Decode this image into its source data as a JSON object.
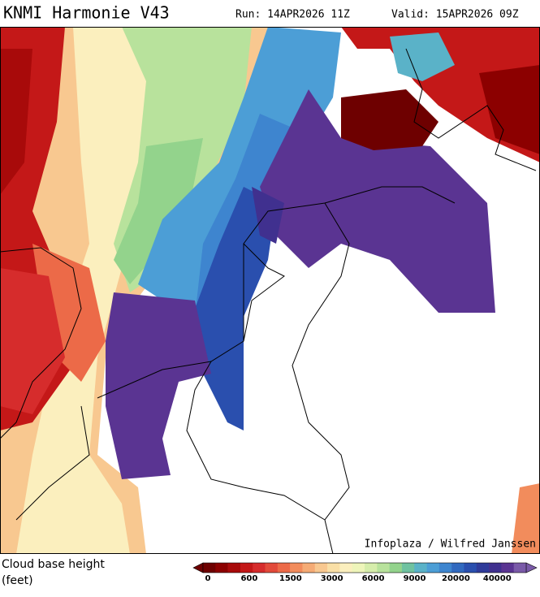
{
  "header": {
    "title": "KNMI Harmonie V43",
    "run": "Run: 14APR2026 11Z",
    "valid": "Valid: 15APR2026 09Z"
  },
  "map": {
    "credit": "Infoplaza / Wilfred Janssen"
  },
  "legend": {
    "label_line1": "Cloud base height",
    "label_line2": "(feet)",
    "colors": [
      "#6e0000",
      "#8c0000",
      "#a80a0a",
      "#c41818",
      "#d62c2c",
      "#e24a3a",
      "#ec6a48",
      "#f28c5c",
      "#f5ab75",
      "#f8c890",
      "#f9dfa6",
      "#fbefbe",
      "#eef5ba",
      "#d6edab",
      "#b8e29c",
      "#93d38c",
      "#6fc2a0",
      "#5ab2c8",
      "#4c9ed6",
      "#3e85cf",
      "#3169bf",
      "#2a4fae",
      "#2f3b9a",
      "#40308f",
      "#5a3492",
      "#7a5aa8"
    ],
    "ticks": [
      0,
      600,
      1500,
      3000,
      6000,
      9000,
      20000,
      40000
    ]
  }
}
